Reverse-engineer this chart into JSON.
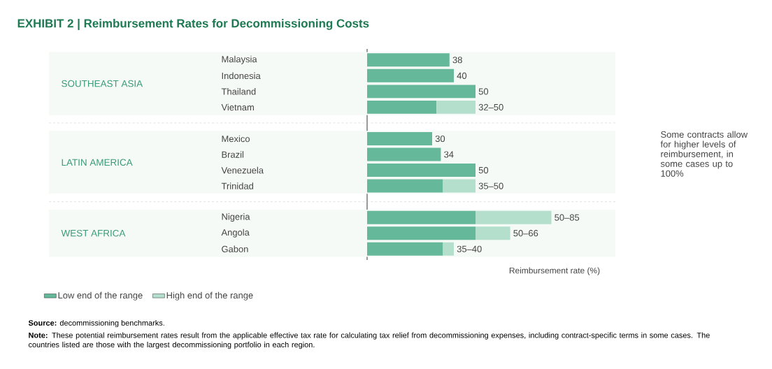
{
  "chart_data": {
    "type": "bar",
    "orientation": "horizontal",
    "stacked": true,
    "title": "EXHIBIT 2 | Reimbursement Rates for Decommissioning Costs",
    "categories": [
      "Malaysia",
      "Indonesia",
      "Thailand",
      "Vietnam",
      "Mexico",
      "Brazil",
      "Venezuela",
      "Trinidad",
      "Nigeria",
      "Angola",
      "Gabon"
    ],
    "series": [
      {
        "name": "Low end of the range",
        "color": "#66b89a",
        "values": [
          38,
          40,
          50,
          32,
          30,
          34,
          50,
          35,
          50,
          50,
          35
        ],
        "value_labels": [
          "38",
          "40",
          "50",
          null,
          "30",
          "34",
          "50",
          null,
          null,
          null,
          null
        ]
      },
      {
        "name": "High end of the range",
        "color": "#b3dfcc",
        "values": [
          null,
          null,
          null,
          18,
          null,
          null,
          null,
          15,
          35,
          16,
          5
        ]
      }
    ],
    "totals": [
      null,
      null,
      null,
      "32–50",
      null,
      null,
      null,
      "35–50",
      "50–85",
      "50–66",
      "35–40"
    ],
    "bands": [
      {
        "axis": "y",
        "from": "Malaysia",
        "to": "Vietnam",
        "label": "SOUTHEAST ASIA",
        "color": "#f5faf7"
      },
      {
        "axis": "y",
        "from": "Mexico",
        "to": "Trinidad",
        "label": "LATIN AMERICA",
        "color": "#f5faf7"
      },
      {
        "axis": "y",
        "from": "Nigeria",
        "to": "Gabon",
        "label": "WEST AFRICA",
        "color": "#f5faf7"
      }
    ],
    "xlabel": "Reimbursement rate (%)",
    "legend": "bottom",
    "annotations": [
      "Some contracts allow for higher levels of reimbursement, in some cases up to 100%",
      "**Source:** decommissioning benchmarks.",
      "**Note:** These potential reimbursement rates result from the applicable effective tax rate for calculating tax relief from decommissioning expenses, including contract-specific terms in some cases. The countries listed are those with the largest decommissioning portfolio in each region."
    ]
  }
}
